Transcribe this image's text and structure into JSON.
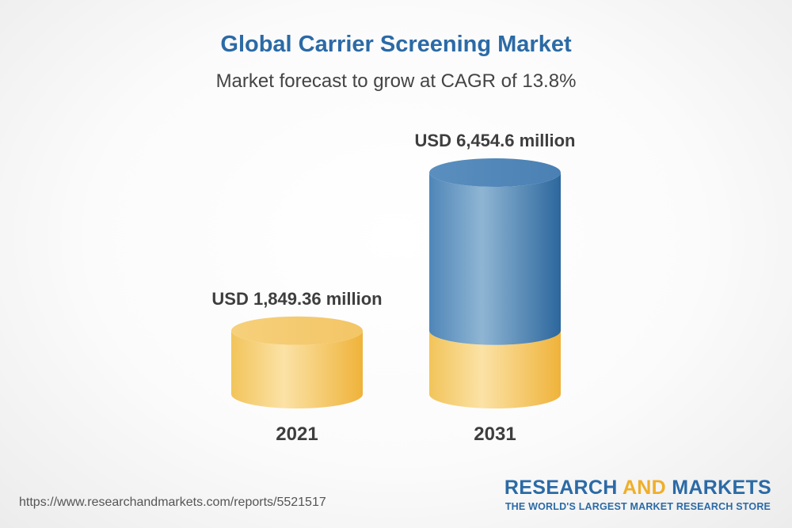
{
  "title": "Global Carrier Screening Market",
  "subtitle": "Market forecast to grow at CAGR of 13.8%",
  "url": "https://www.researchandmarkets.com/reports/5521517",
  "brand": {
    "part1": "RESEARCH",
    "part2": "AND",
    "part3": "MARKETS",
    "tagline": "THE WORLD'S LARGEST MARKET RESEARCH STORE"
  },
  "colors": {
    "accent_blue": "#2b6aa6",
    "gold": "#f0b63a",
    "blue_bar": "#4e86b8"
  },
  "chart_data": {
    "type": "bar",
    "categories": [
      "2021",
      "2031"
    ],
    "values": [
      1849.36,
      6454.6
    ],
    "value_labels": [
      "USD 1,849.36 million",
      "USD 6,454.6 million"
    ],
    "unit": "USD million",
    "style": "3d-cylinder",
    "ylim": [
      0,
      6454.6
    ]
  }
}
